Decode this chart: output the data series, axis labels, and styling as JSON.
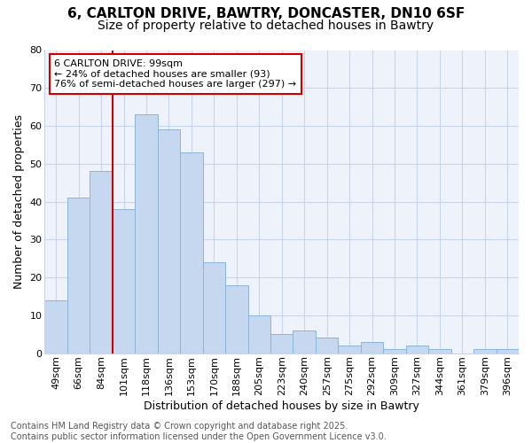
{
  "title_line1": "6, CARLTON DRIVE, BAWTRY, DONCASTER, DN10 6SF",
  "title_line2": "Size of property relative to detached houses in Bawtry",
  "xlabel": "Distribution of detached houses by size in Bawtry",
  "ylabel": "Number of detached properties",
  "categories": [
    "49sqm",
    "66sqm",
    "84sqm",
    "101sqm",
    "118sqm",
    "136sqm",
    "153sqm",
    "170sqm",
    "188sqm",
    "205sqm",
    "223sqm",
    "240sqm",
    "257sqm",
    "275sqm",
    "292sqm",
    "309sqm",
    "327sqm",
    "344sqm",
    "361sqm",
    "379sqm",
    "396sqm"
  ],
  "values": [
    14,
    41,
    48,
    38,
    63,
    59,
    53,
    24,
    18,
    10,
    5,
    6,
    4,
    2,
    3,
    1,
    2,
    1,
    0,
    1,
    1
  ],
  "bar_color": "#c5d8f0",
  "bar_edge_color": "#8ab4d8",
  "grid_color": "#c8d4e8",
  "background_color": "#ffffff",
  "plot_bg_color": "#eef2fa",
  "annotation_text": "6 CARLTON DRIVE: 99sqm\n← 24% of detached houses are smaller (93)\n76% of semi-detached houses are larger (297) →",
  "vline_index": 3,
  "ylim": [
    0,
    80
  ],
  "yticks": [
    0,
    10,
    20,
    30,
    40,
    50,
    60,
    70,
    80
  ],
  "footer_text": "Contains HM Land Registry data © Crown copyright and database right 2025.\nContains public sector information licensed under the Open Government Licence v3.0.",
  "annotation_box_facecolor": "#ffffff",
  "annotation_box_edgecolor": "#cc0000",
  "vline_color": "#cc0000",
  "title1_fontsize": 11,
  "title2_fontsize": 10,
  "ylabel_fontsize": 9,
  "xlabel_fontsize": 9,
  "tick_fontsize": 8,
  "annotation_fontsize": 8,
  "footer_fontsize": 7
}
